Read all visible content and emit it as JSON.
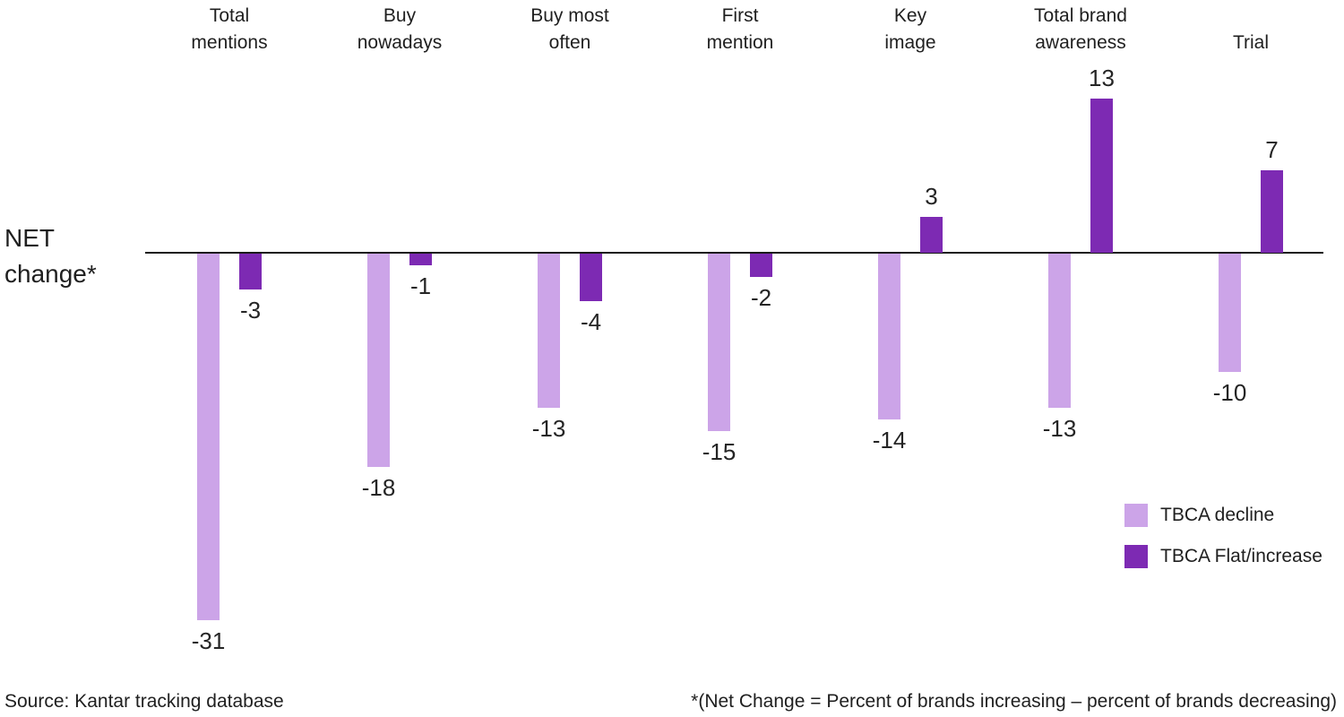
{
  "chart_data": {
    "type": "bar",
    "title": "",
    "axis_label": "NET change*",
    "categories": [
      "Total mentions",
      "Buy nowadays",
      "Buy most often",
      "First mention",
      "Key image",
      "Total brand awareness",
      "Trial"
    ],
    "category_label_lines": [
      [
        "Total",
        "mentions"
      ],
      [
        "Buy",
        "nowadays"
      ],
      [
        "Buy most",
        "often"
      ],
      [
        "First",
        "mention"
      ],
      [
        "Key",
        "image"
      ],
      [
        "Total brand",
        "awareness"
      ],
      [
        "Trial"
      ]
    ],
    "series": [
      {
        "name": "TBCA decline",
        "color": "#cca4e8",
        "values": [
          -31,
          -18,
          -13,
          -15,
          -14,
          -13,
          -10
        ]
      },
      {
        "name": "TBCA Flat/increase",
        "color": "#7d2ab3",
        "values": [
          -3,
          -1,
          -4,
          -2,
          3,
          13,
          7
        ]
      }
    ],
    "baseline": 0,
    "grid": false,
    "value_labels": true,
    "legend_position": "right-middle",
    "axis_line_color": "#1a1a1a"
  },
  "footer": {
    "source": "Source: Kantar tracking database",
    "note": "*(Net Change = Percent of brands increasing – percent of brands decreasing)"
  }
}
